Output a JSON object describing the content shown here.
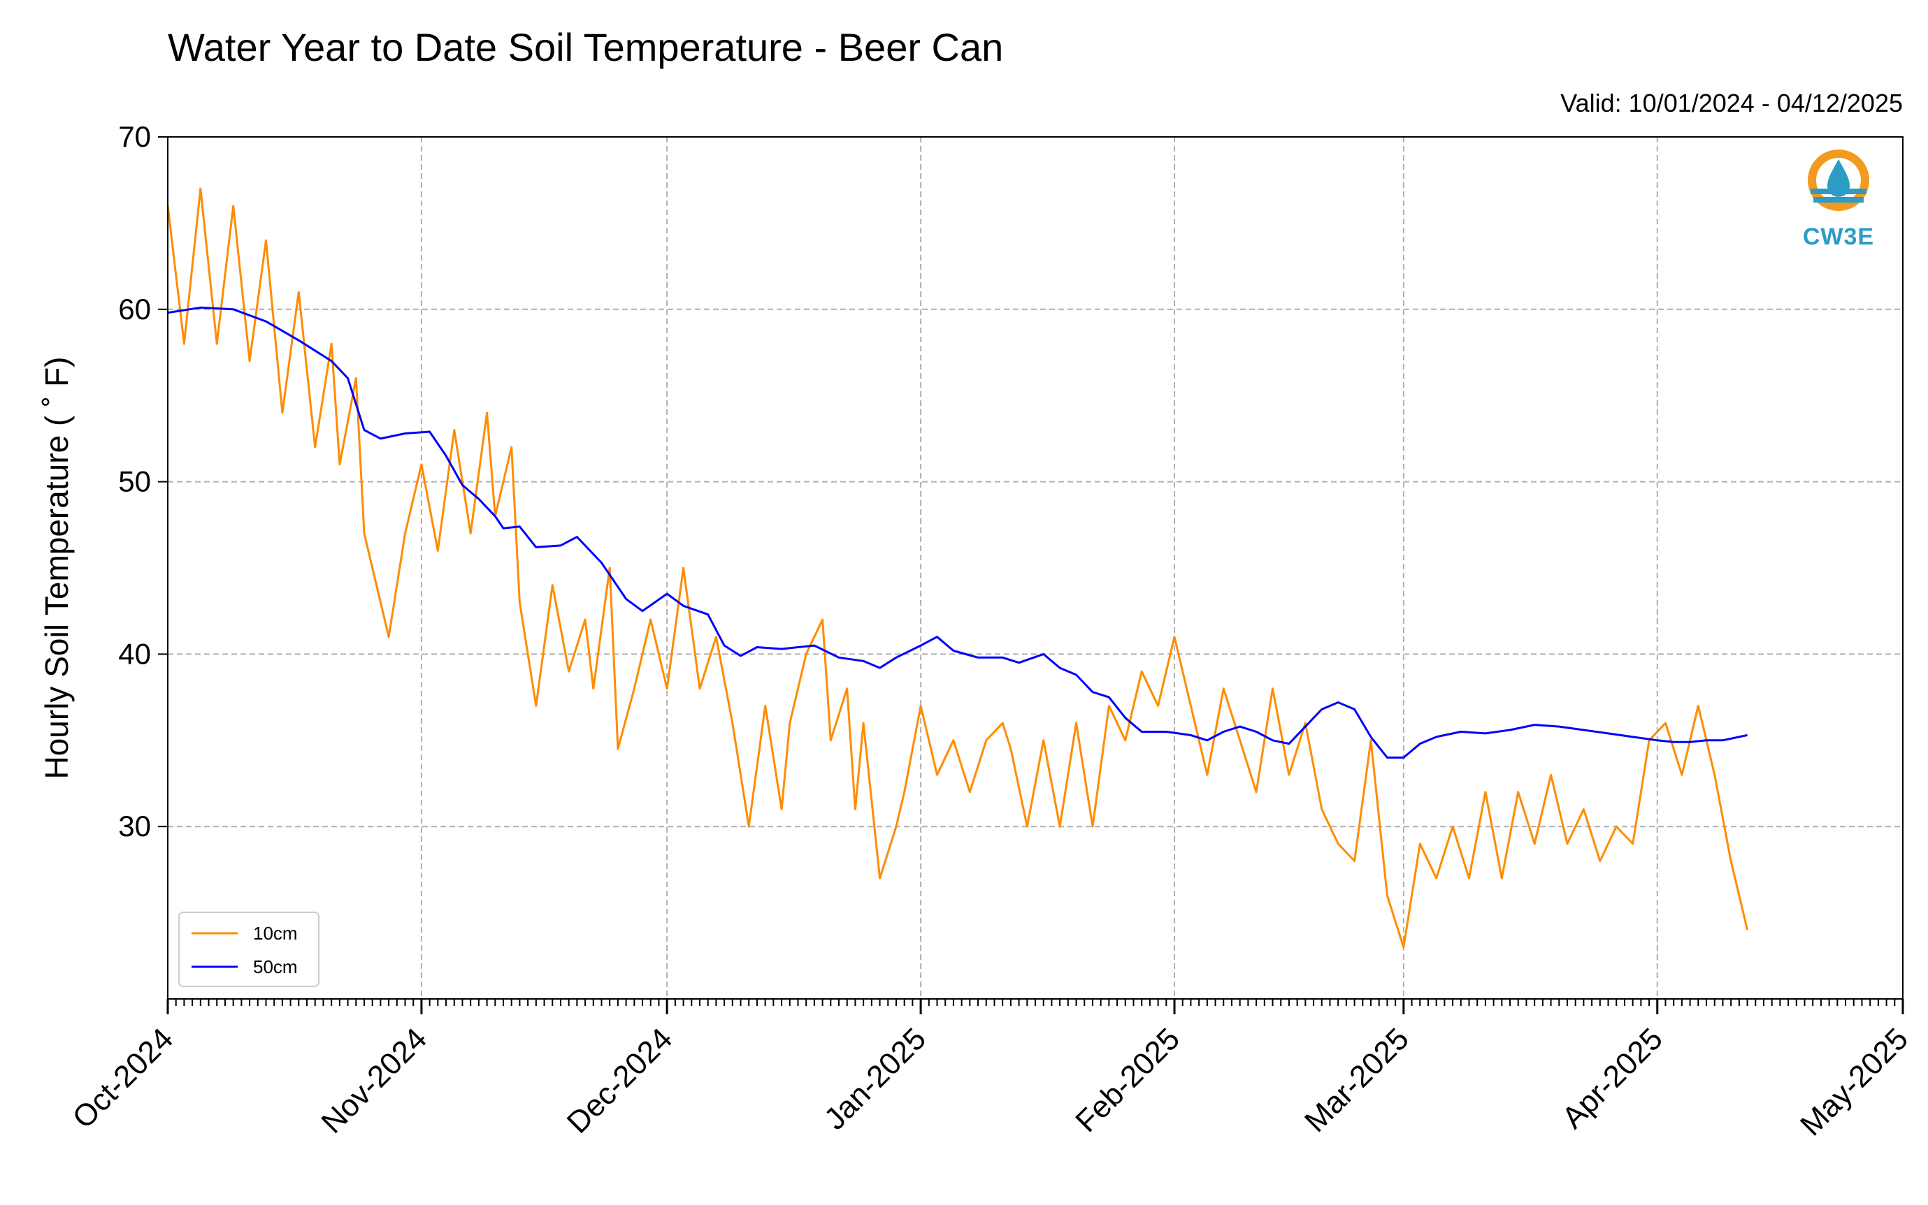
{
  "title": "Water Year to Date Soil Temperature - Beer Can",
  "valid_text": "Valid: 10/01/2024 - 04/12/2025",
  "logo_text": "CW3E",
  "colors": {
    "s10": "#ff8c00",
    "s50": "#0000ff",
    "logo_orange": "#f39a21",
    "logo_blue": "#2b9cc4"
  },
  "chart_data": {
    "type": "line",
    "ylabel": "Hourly Soil Temperature ($^\\circ$F)",
    "ylabel_display": "Hourly Soil Temperature ( ˚ F)",
    "xlim": [
      "2024-10-01",
      "2025-05-01"
    ],
    "ylim": [
      20,
      70
    ],
    "yticks": [
      30,
      40,
      50,
      60,
      70
    ],
    "xticks": [
      {
        "date": "2024-10-01",
        "label": "Oct-2024"
      },
      {
        "date": "2024-11-01",
        "label": "Nov-2024"
      },
      {
        "date": "2024-12-01",
        "label": "Dec-2024"
      },
      {
        "date": "2025-01-01",
        "label": "Jan-2025"
      },
      {
        "date": "2025-02-01",
        "label": "Feb-2025"
      },
      {
        "date": "2025-03-01",
        "label": "Mar-2025"
      },
      {
        "date": "2025-04-01",
        "label": "Apr-2025"
      },
      {
        "date": "2025-05-01",
        "label": "May-2025"
      }
    ],
    "grid": true,
    "legend_position": "lower-left",
    "series": [
      {
        "name": "10cm",
        "color": "#ff8c00",
        "points": [
          {
            "x": "2024-10-01",
            "y": 66
          },
          {
            "x": "2024-10-03",
            "y": 58
          },
          {
            "x": "2024-10-05",
            "y": 67
          },
          {
            "x": "2024-10-07",
            "y": 58
          },
          {
            "x": "2024-10-09",
            "y": 66
          },
          {
            "x": "2024-10-11",
            "y": 57
          },
          {
            "x": "2024-10-13",
            "y": 64
          },
          {
            "x": "2024-10-15",
            "y": 54
          },
          {
            "x": "2024-10-17",
            "y": 61
          },
          {
            "x": "2024-10-19",
            "y": 52
          },
          {
            "x": "2024-10-21",
            "y": 58
          },
          {
            "x": "2024-10-22",
            "y": 51
          },
          {
            "x": "2024-10-24",
            "y": 56
          },
          {
            "x": "2024-10-25",
            "y": 47
          },
          {
            "x": "2024-10-27",
            "y": 43
          },
          {
            "x": "2024-10-28",
            "y": 41
          },
          {
            "x": "2024-10-30",
            "y": 47
          },
          {
            "x": "2024-11-01",
            "y": 51
          },
          {
            "x": "2024-11-03",
            "y": 46
          },
          {
            "x": "2024-11-05",
            "y": 53
          },
          {
            "x": "2024-11-07",
            "y": 47
          },
          {
            "x": "2024-11-09",
            "y": 54
          },
          {
            "x": "2024-11-10",
            "y": 48
          },
          {
            "x": "2024-11-12",
            "y": 52
          },
          {
            "x": "2024-11-13",
            "y": 43
          },
          {
            "x": "2024-11-14",
            "y": 40
          },
          {
            "x": "2024-11-15",
            "y": 37
          },
          {
            "x": "2024-11-17",
            "y": 44
          },
          {
            "x": "2024-11-19",
            "y": 39
          },
          {
            "x": "2024-11-21",
            "y": 42
          },
          {
            "x": "2024-11-22",
            "y": 38
          },
          {
            "x": "2024-11-24",
            "y": 45
          },
          {
            "x": "2024-11-25",
            "y": 34.5
          },
          {
            "x": "2024-11-27",
            "y": 38
          },
          {
            "x": "2024-11-29",
            "y": 42
          },
          {
            "x": "2024-12-01",
            "y": 38
          },
          {
            "x": "2024-12-03",
            "y": 45
          },
          {
            "x": "2024-12-05",
            "y": 38
          },
          {
            "x": "2024-12-07",
            "y": 41
          },
          {
            "x": "2024-12-09",
            "y": 36
          },
          {
            "x": "2024-12-11",
            "y": 30
          },
          {
            "x": "2024-12-13",
            "y": 37
          },
          {
            "x": "2024-12-15",
            "y": 31
          },
          {
            "x": "2024-12-16",
            "y": 36
          },
          {
            "x": "2024-12-18",
            "y": 40
          },
          {
            "x": "2024-12-20",
            "y": 42
          },
          {
            "x": "2024-12-21",
            "y": 35
          },
          {
            "x": "2024-12-23",
            "y": 38
          },
          {
            "x": "2024-12-24",
            "y": 31
          },
          {
            "x": "2024-12-25",
            "y": 36
          },
          {
            "x": "2024-12-27",
            "y": 27
          },
          {
            "x": "2024-12-29",
            "y": 30
          },
          {
            "x": "2024-12-30",
            "y": 32
          },
          {
            "x": "2025-01-01",
            "y": 37
          },
          {
            "x": "2025-01-03",
            "y": 33
          },
          {
            "x": "2025-01-05",
            "y": 35
          },
          {
            "x": "2025-01-07",
            "y": 32
          },
          {
            "x": "2025-01-09",
            "y": 35
          },
          {
            "x": "2025-01-11",
            "y": 36
          },
          {
            "x": "2025-01-12",
            "y": 34.5
          },
          {
            "x": "2025-01-14",
            "y": 30
          },
          {
            "x": "2025-01-16",
            "y": 35
          },
          {
            "x": "2025-01-18",
            "y": 30
          },
          {
            "x": "2025-01-20",
            "y": 36
          },
          {
            "x": "2025-01-22",
            "y": 30
          },
          {
            "x": "2025-01-24",
            "y": 37
          },
          {
            "x": "2025-01-26",
            "y": 35
          },
          {
            "x": "2025-01-28",
            "y": 39
          },
          {
            "x": "2025-01-30",
            "y": 37
          },
          {
            "x": "2025-02-01",
            "y": 41
          },
          {
            "x": "2025-02-03",
            "y": 37
          },
          {
            "x": "2025-02-05",
            "y": 33
          },
          {
            "x": "2025-02-07",
            "y": 38
          },
          {
            "x": "2025-02-09",
            "y": 35
          },
          {
            "x": "2025-02-11",
            "y": 32
          },
          {
            "x": "2025-02-13",
            "y": 38
          },
          {
            "x": "2025-02-15",
            "y": 33
          },
          {
            "x": "2025-02-17",
            "y": 36
          },
          {
            "x": "2025-02-19",
            "y": 31
          },
          {
            "x": "2025-02-21",
            "y": 29
          },
          {
            "x": "2025-02-23",
            "y": 28
          },
          {
            "x": "2025-02-25",
            "y": 35
          },
          {
            "x": "2025-02-27",
            "y": 26
          },
          {
            "x": "2025-03-01",
            "y": 23
          },
          {
            "x": "2025-03-03",
            "y": 29
          },
          {
            "x": "2025-03-05",
            "y": 27
          },
          {
            "x": "2025-03-07",
            "y": 30
          },
          {
            "x": "2025-03-09",
            "y": 27
          },
          {
            "x": "2025-03-11",
            "y": 32
          },
          {
            "x": "2025-03-13",
            "y": 27
          },
          {
            "x": "2025-03-15",
            "y": 32
          },
          {
            "x": "2025-03-17",
            "y": 29
          },
          {
            "x": "2025-03-19",
            "y": 33
          },
          {
            "x": "2025-03-21",
            "y": 29
          },
          {
            "x": "2025-03-23",
            "y": 31
          },
          {
            "x": "2025-03-25",
            "y": 28
          },
          {
            "x": "2025-03-27",
            "y": 30
          },
          {
            "x": "2025-03-29",
            "y": 29
          },
          {
            "x": "2025-03-31",
            "y": 35
          },
          {
            "x": "2025-04-02",
            "y": 36
          },
          {
            "x": "2025-04-04",
            "y": 33
          },
          {
            "x": "2025-04-06",
            "y": 37
          },
          {
            "x": "2025-04-08",
            "y": 33
          },
          {
            "x": "2025-04-10",
            "y": 28
          },
          {
            "x": "2025-04-12",
            "y": 24
          }
        ]
      },
      {
        "name": "50cm",
        "color": "#0000ff",
        "points": [
          {
            "x": "2024-10-01",
            "y": 59.8
          },
          {
            "x": "2024-10-05",
            "y": 60.1
          },
          {
            "x": "2024-10-09",
            "y": 60.0
          },
          {
            "x": "2024-10-13",
            "y": 59.3
          },
          {
            "x": "2024-10-17",
            "y": 58.2
          },
          {
            "x": "2024-10-21",
            "y": 57.0
          },
          {
            "x": "2024-10-23",
            "y": 56.0
          },
          {
            "x": "2024-10-25",
            "y": 53.0
          },
          {
            "x": "2024-10-27",
            "y": 52.5
          },
          {
            "x": "2024-10-30",
            "y": 52.8
          },
          {
            "x": "2024-11-02",
            "y": 52.9
          },
          {
            "x": "2024-11-04",
            "y": 51.5
          },
          {
            "x": "2024-11-06",
            "y": 49.8
          },
          {
            "x": "2024-11-08",
            "y": 49.0
          },
          {
            "x": "2024-11-10",
            "y": 48.0
          },
          {
            "x": "2024-11-11",
            "y": 47.3
          },
          {
            "x": "2024-11-13",
            "y": 47.4
          },
          {
            "x": "2024-11-15",
            "y": 46.2
          },
          {
            "x": "2024-11-18",
            "y": 46.3
          },
          {
            "x": "2024-11-20",
            "y": 46.8
          },
          {
            "x": "2024-11-23",
            "y": 45.3
          },
          {
            "x": "2024-11-26",
            "y": 43.2
          },
          {
            "x": "2024-11-28",
            "y": 42.5
          },
          {
            "x": "2024-12-01",
            "y": 43.5
          },
          {
            "x": "2024-12-03",
            "y": 42.8
          },
          {
            "x": "2024-12-06",
            "y": 42.3
          },
          {
            "x": "2024-12-08",
            "y": 40.5
          },
          {
            "x": "2024-12-10",
            "y": 39.9
          },
          {
            "x": "2024-12-12",
            "y": 40.4
          },
          {
            "x": "2024-12-15",
            "y": 40.3
          },
          {
            "x": "2024-12-19",
            "y": 40.5
          },
          {
            "x": "2024-12-22",
            "y": 39.8
          },
          {
            "x": "2024-12-25",
            "y": 39.6
          },
          {
            "x": "2024-12-27",
            "y": 39.2
          },
          {
            "x": "2024-12-29",
            "y": 39.8
          },
          {
            "x": "2025-01-01",
            "y": 40.5
          },
          {
            "x": "2025-01-03",
            "y": 41.0
          },
          {
            "x": "2025-01-05",
            "y": 40.2
          },
          {
            "x": "2025-01-08",
            "y": 39.8
          },
          {
            "x": "2025-01-11",
            "y": 39.8
          },
          {
            "x": "2025-01-13",
            "y": 39.5
          },
          {
            "x": "2025-01-16",
            "y": 40.0
          },
          {
            "x": "2025-01-18",
            "y": 39.2
          },
          {
            "x": "2025-01-20",
            "y": 38.8
          },
          {
            "x": "2025-01-22",
            "y": 37.8
          },
          {
            "x": "2025-01-24",
            "y": 37.5
          },
          {
            "x": "2025-01-26",
            "y": 36.3
          },
          {
            "x": "2025-01-28",
            "y": 35.5
          },
          {
            "x": "2025-01-31",
            "y": 35.5
          },
          {
            "x": "2025-02-03",
            "y": 35.3
          },
          {
            "x": "2025-02-05",
            "y": 35.0
          },
          {
            "x": "2025-02-07",
            "y": 35.5
          },
          {
            "x": "2025-02-09",
            "y": 35.8
          },
          {
            "x": "2025-02-11",
            "y": 35.5
          },
          {
            "x": "2025-02-13",
            "y": 35.0
          },
          {
            "x": "2025-02-15",
            "y": 34.8
          },
          {
            "x": "2025-02-17",
            "y": 35.8
          },
          {
            "x": "2025-02-19",
            "y": 36.8
          },
          {
            "x": "2025-02-21",
            "y": 37.2
          },
          {
            "x": "2025-02-23",
            "y": 36.8
          },
          {
            "x": "2025-02-25",
            "y": 35.2
          },
          {
            "x": "2025-02-27",
            "y": 34.0
          },
          {
            "x": "2025-03-01",
            "y": 34.0
          },
          {
            "x": "2025-03-03",
            "y": 34.8
          },
          {
            "x": "2025-03-05",
            "y": 35.2
          },
          {
            "x": "2025-03-08",
            "y": 35.5
          },
          {
            "x": "2025-03-11",
            "y": 35.4
          },
          {
            "x": "2025-03-14",
            "y": 35.6
          },
          {
            "x": "2025-03-17",
            "y": 35.9
          },
          {
            "x": "2025-03-20",
            "y": 35.8
          },
          {
            "x": "2025-03-23",
            "y": 35.6
          },
          {
            "x": "2025-03-26",
            "y": 35.4
          },
          {
            "x": "2025-03-29",
            "y": 35.2
          },
          {
            "x": "2025-04-01",
            "y": 35.0
          },
          {
            "x": "2025-04-03",
            "y": 34.9
          },
          {
            "x": "2025-04-05",
            "y": 34.9
          },
          {
            "x": "2025-04-07",
            "y": 35.0
          },
          {
            "x": "2025-04-09",
            "y": 35.0
          },
          {
            "x": "2025-04-11",
            "y": 35.2
          },
          {
            "x": "2025-04-12",
            "y": 35.3
          }
        ]
      }
    ]
  }
}
